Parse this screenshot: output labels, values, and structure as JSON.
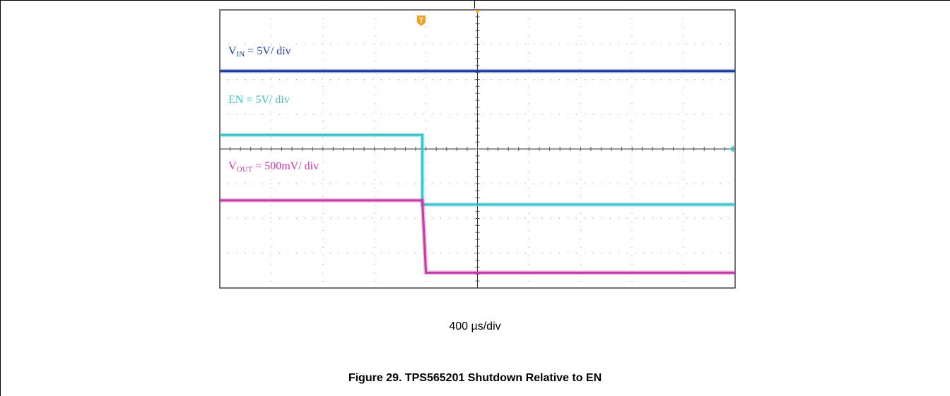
{
  "chart_data": {
    "type": "line",
    "x_scale_label": "400 µs/div",
    "caption": "Figure 29. TPS565201 Shutdown Relative to EN",
    "grid": true,
    "divisions": {
      "x": 10,
      "y": 8
    },
    "trigger_marker": "T",
    "series": [
      {
        "name": "V_IN = 5V/ div",
        "label_main": "V",
        "label_sub": "IN",
        "label_rest": " = 5V/ div",
        "color": "#1f3e9e",
        "x": [
          0,
          10
        ],
        "y": [
          0.78,
          0.78
        ]
      },
      {
        "name": "EN = 5V/ div",
        "label_main": "EN = 5V/ div",
        "label_sub": "",
        "label_rest": "",
        "color": "#3cc3c9",
        "x": [
          0,
          3.93,
          3.93,
          10
        ],
        "y": [
          0.55,
          0.55,
          0.3,
          0.3
        ]
      },
      {
        "name": "V_OUT = 500mV/ div",
        "label_main": "V",
        "label_sub": "OUT",
        "label_rest": " = 500mV/ div",
        "color": "#c63aa6",
        "x": [
          0,
          3.93,
          4.0,
          10
        ],
        "y": [
          0.315,
          0.315,
          0.055,
          0.055
        ]
      }
    ]
  }
}
